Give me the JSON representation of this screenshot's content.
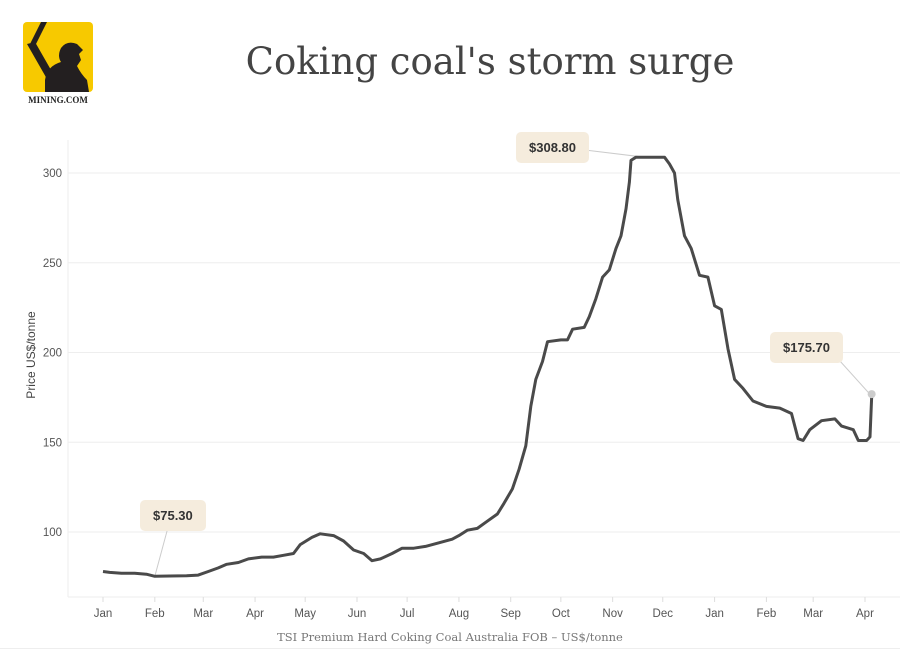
{
  "logo": {
    "text": "MINING.COM",
    "color": "#f7c900"
  },
  "title": "Coking coal's storm surge",
  "chart_data": {
    "type": "line",
    "title": "Coking coal's storm surge",
    "xlabel": "TSI Premium Hard Coking Coal Australia FOB – US$/tonne",
    "ylabel": "Price US$/tonne",
    "x_ticks": [
      "Jan",
      "Feb",
      "Mar",
      "Apr",
      "May",
      "Jun",
      "Jul",
      "Aug",
      "Sep",
      "Oct",
      "Nov",
      "Dec",
      "Jan",
      "Feb",
      "Mar",
      "Apr"
    ],
    "y_ticks": [
      100,
      150,
      200,
      250,
      300
    ],
    "xlim": [
      "2015-12-23",
      "2017-04-20"
    ],
    "ylim": [
      64,
      325
    ],
    "grid": true,
    "line_color": "#4a4a4a",
    "series": [
      {
        "points": [
          [
            "2016-01-01",
            78
          ],
          [
            "2016-01-05",
            77.5
          ],
          [
            "2016-01-12",
            77
          ],
          [
            "2016-01-20",
            77
          ],
          [
            "2016-01-27",
            76.5
          ],
          [
            "2016-02-01",
            75.3
          ],
          [
            "2016-02-10",
            75.5
          ],
          [
            "2016-02-20",
            75.6
          ],
          [
            "2016-02-27",
            76
          ],
          [
            "2016-03-04",
            78
          ],
          [
            "2016-03-10",
            80
          ],
          [
            "2016-03-15",
            82
          ],
          [
            "2016-03-22",
            83
          ],
          [
            "2016-03-28",
            85
          ],
          [
            "2016-04-05",
            86
          ],
          [
            "2016-04-12",
            86
          ],
          [
            "2016-04-18",
            87
          ],
          [
            "2016-04-24",
            88
          ],
          [
            "2016-04-28",
            93
          ],
          [
            "2016-05-05",
            97
          ],
          [
            "2016-05-10",
            99
          ],
          [
            "2016-05-18",
            98
          ],
          [
            "2016-05-24",
            95
          ],
          [
            "2016-05-30",
            90
          ],
          [
            "2016-06-05",
            88
          ],
          [
            "2016-06-10",
            84
          ],
          [
            "2016-06-15",
            85
          ],
          [
            "2016-06-22",
            88
          ],
          [
            "2016-06-28",
            91
          ],
          [
            "2016-07-05",
            91
          ],
          [
            "2016-07-12",
            92
          ],
          [
            "2016-07-20",
            94
          ],
          [
            "2016-07-28",
            96
          ],
          [
            "2016-08-01",
            98
          ],
          [
            "2016-08-06",
            101
          ],
          [
            "2016-08-12",
            102
          ],
          [
            "2016-08-18",
            106
          ],
          [
            "2016-08-24",
            110
          ],
          [
            "2016-08-28",
            116
          ],
          [
            "2016-09-02",
            124
          ],
          [
            "2016-09-06",
            135
          ],
          [
            "2016-09-10",
            148
          ],
          [
            "2016-09-13",
            170
          ],
          [
            "2016-09-16",
            185
          ],
          [
            "2016-09-20",
            195
          ],
          [
            "2016-09-23",
            206
          ],
          [
            "2016-10-01",
            207
          ],
          [
            "2016-10-05",
            207
          ],
          [
            "2016-10-08",
            213
          ],
          [
            "2016-10-15",
            214
          ],
          [
            "2016-10-18",
            220
          ],
          [
            "2016-10-22",
            230
          ],
          [
            "2016-10-26",
            242
          ],
          [
            "2016-10-30",
            246
          ],
          [
            "2016-11-03",
            258
          ],
          [
            "2016-11-06",
            265
          ],
          [
            "2016-11-09",
            280
          ],
          [
            "2016-11-11",
            295
          ],
          [
            "2016-11-12",
            307
          ],
          [
            "2016-11-15",
            308.8
          ],
          [
            "2016-11-25",
            308.8
          ],
          [
            "2016-12-02",
            308.8
          ],
          [
            "2016-12-05",
            305
          ],
          [
            "2016-12-08",
            300
          ],
          [
            "2016-12-10",
            285
          ],
          [
            "2016-12-14",
            265
          ],
          [
            "2016-12-18",
            258
          ],
          [
            "2016-12-23",
            243
          ],
          [
            "2016-12-28",
            242
          ],
          [
            "2017-01-01",
            226
          ],
          [
            "2017-01-05",
            224
          ],
          [
            "2017-01-09",
            202
          ],
          [
            "2017-01-13",
            185
          ],
          [
            "2017-01-18",
            180
          ],
          [
            "2017-01-24",
            173
          ],
          [
            "2017-02-01",
            170
          ],
          [
            "2017-02-09",
            169
          ],
          [
            "2017-02-16",
            166
          ],
          [
            "2017-02-20",
            152
          ],
          [
            "2017-02-23",
            151
          ],
          [
            "2017-02-27",
            157
          ],
          [
            "2017-03-06",
            162
          ],
          [
            "2017-03-14",
            163
          ],
          [
            "2017-03-18",
            159
          ],
          [
            "2017-03-25",
            157
          ],
          [
            "2017-03-28",
            151
          ],
          [
            "2017-04-02",
            151
          ],
          [
            "2017-04-04",
            153
          ],
          [
            "2017-04-05",
            175.7
          ]
        ]
      }
    ],
    "annotations": [
      {
        "date": "2016-02-01",
        "value": 75.3,
        "label": "$75.30"
      },
      {
        "date": "2016-11-20",
        "value": 308.8,
        "label": "$308.80"
      },
      {
        "date": "2017-04-05",
        "value": 175.7,
        "label": "$175.70"
      }
    ],
    "legend": "none"
  }
}
